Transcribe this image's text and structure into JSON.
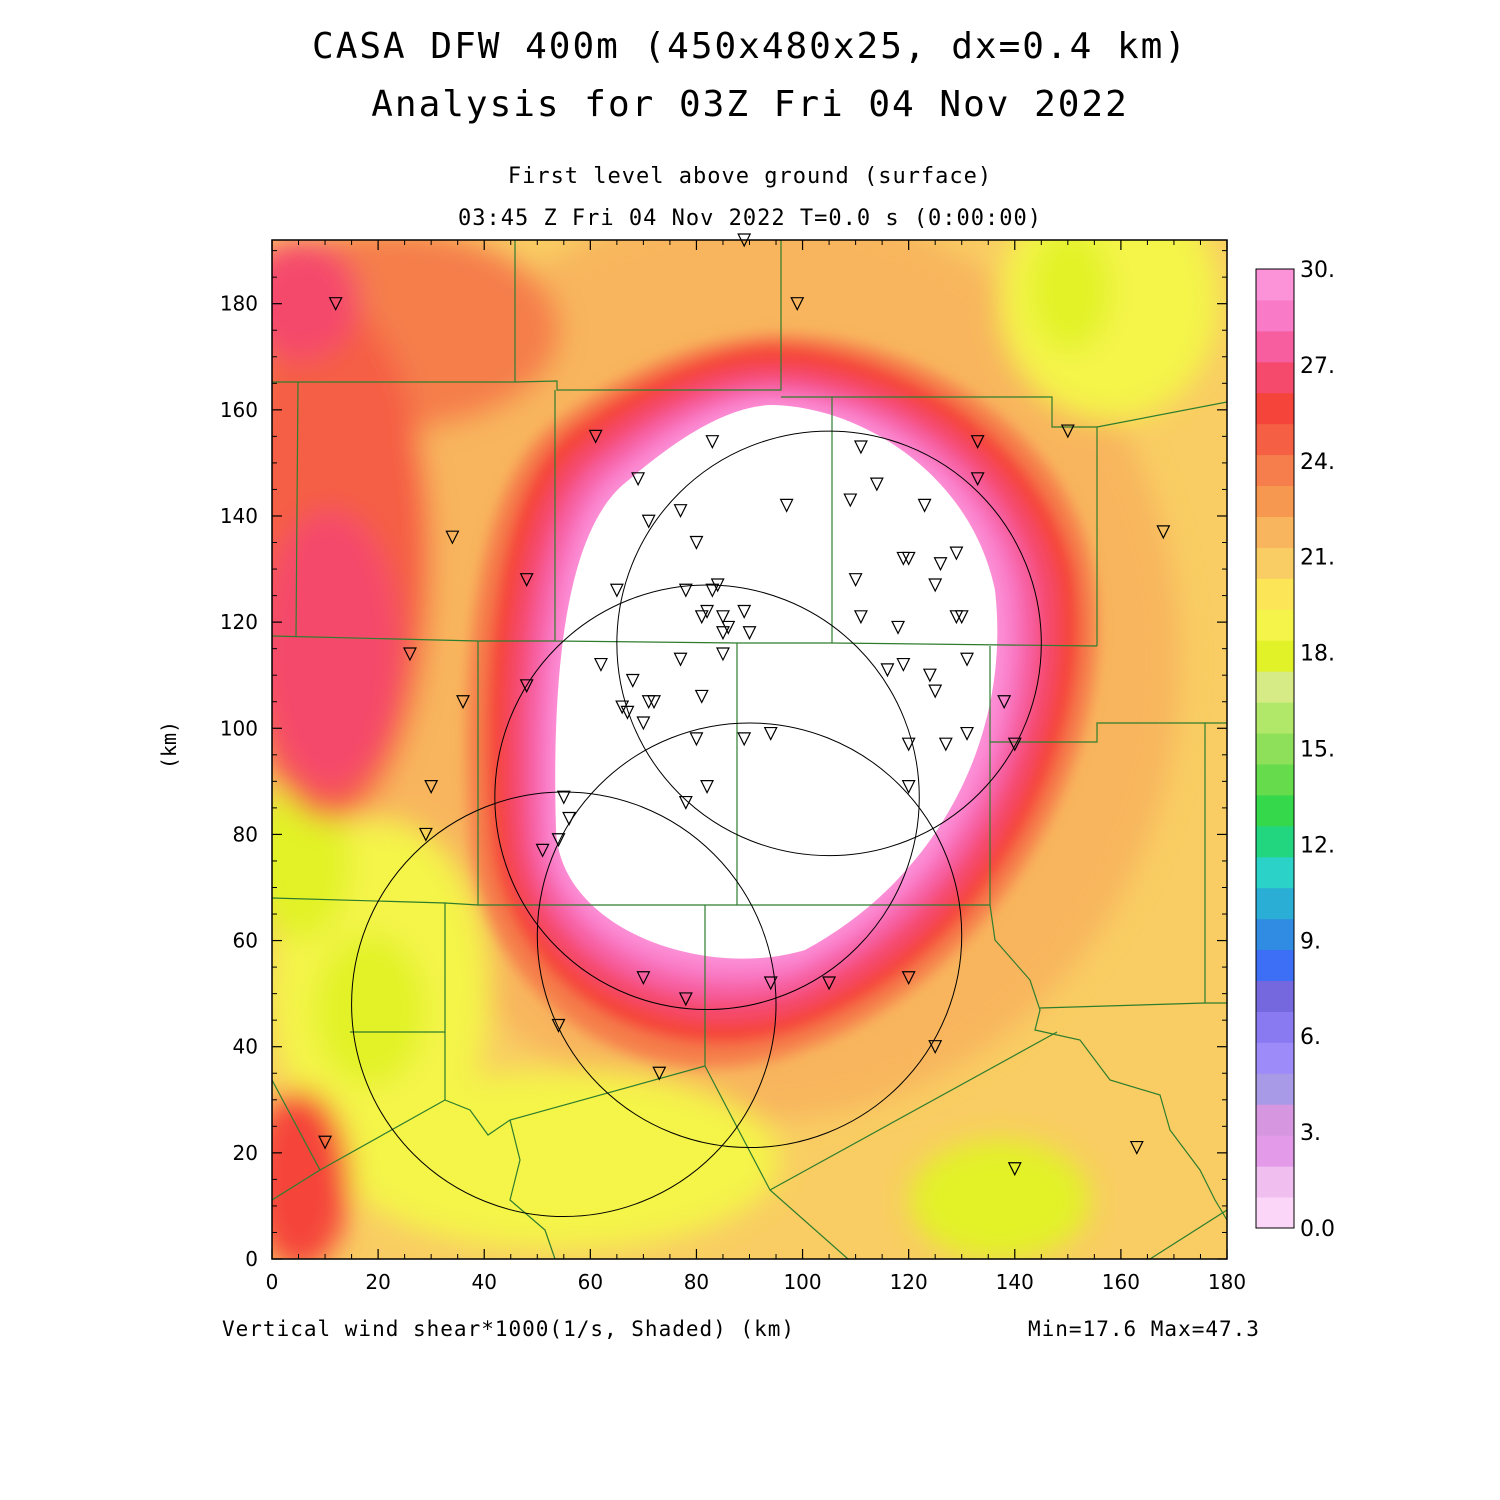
{
  "header": {
    "title_line1": "CASA DFW 400m (450x480x25, dx=0.4 km)",
    "title_line2": "Analysis for 03Z Fri 04 Nov 2022",
    "level_line": "First level above ground (surface)",
    "time_line": "03:45 Z Fri 04 Nov 2022    T=0.0 s (0:00:00)"
  },
  "footer": {
    "field_label": "Vertical wind shear*1000(1/s, Shaded)  (km)",
    "minmax": "Min=17.6 Max=47.3"
  },
  "chart_data": {
    "type": "heatmap",
    "variable": "Vertical wind shear*1000 (1/s)",
    "xlabel": "(km)",
    "ylabel": "(km)",
    "xlim": [
      0,
      180
    ],
    "ylim": [
      0,
      192
    ],
    "x_ticks": [
      0,
      20,
      40,
      60,
      80,
      100,
      120,
      140,
      160,
      180
    ],
    "y_ticks": [
      0,
      20,
      40,
      60,
      80,
      100,
      120,
      140,
      160,
      180
    ],
    "field_min": 17.6,
    "field_max": 47.3,
    "colorbar": {
      "labels": [
        "0.0",
        "3.",
        "6.",
        "9.",
        "12.",
        "15.",
        "18.",
        "21.",
        "24.",
        "27.",
        "30."
      ],
      "label_values": [
        0,
        3,
        6,
        9,
        12,
        15,
        18,
        21,
        24,
        27,
        30
      ],
      "colors": [
        "#fcd6f8",
        "#f0bff0",
        "#e39ae8",
        "#d797e0",
        "#a99ae8",
        "#9c8bf8",
        "#8a7af2",
        "#7567de",
        "#3d6ef6",
        "#2f8ce2",
        "#2aaed6",
        "#2ad2c8",
        "#22d67f",
        "#35d84a",
        "#66dc4c",
        "#8ee05a",
        "#b2e86a",
        "#d6eb86",
        "#e2f228",
        "#f4f44a",
        "#fce658",
        "#f9cd63",
        "#f8b55d",
        "#f79850",
        "#f57e4c",
        "#f55f44",
        "#f5443a",
        "#f54a6c",
        "#f75ea0",
        "#f97ac6",
        "#fc92d8"
      ],
      "overflow_color": "#ffffff"
    },
    "grid": false,
    "radar_range_rings_km": [
      {
        "center": [
          105,
          116
        ],
        "radius": 40
      },
      {
        "center": [
          82,
          87
        ],
        "radius": 40
      },
      {
        "center": [
          90,
          61
        ],
        "radius": 40
      },
      {
        "center": [
          55,
          48
        ],
        "radius": 40
      }
    ],
    "station_markers_km": [
      [
        12,
        180
      ],
      [
        89,
        192
      ],
      [
        99,
        180
      ],
      [
        61,
        155
      ],
      [
        83,
        154
      ],
      [
        111,
        153
      ],
      [
        133,
        154
      ],
      [
        150,
        156
      ],
      [
        69,
        147
      ],
      [
        71,
        139
      ],
      [
        77,
        141
      ],
      [
        97,
        142
      ],
      [
        109,
        143
      ],
      [
        114,
        146
      ],
      [
        123,
        142
      ],
      [
        133,
        147
      ],
      [
        168,
        137
      ],
      [
        34,
        136
      ],
      [
        48,
        128
      ],
      [
        65,
        126
      ],
      [
        80,
        135
      ],
      [
        78,
        126
      ],
      [
        83,
        126
      ],
      [
        84,
        127
      ],
      [
        110,
        128
      ],
      [
        119,
        132
      ],
      [
        120,
        132
      ],
      [
        126,
        131
      ],
      [
        129,
        133
      ],
      [
        125,
        127
      ],
      [
        82,
        122
      ],
      [
        81,
        121
      ],
      [
        85,
        121
      ],
      [
        89,
        122
      ],
      [
        85,
        118
      ],
      [
        86,
        119
      ],
      [
        90,
        118
      ],
      [
        111,
        121
      ],
      [
        118,
        119
      ],
      [
        129,
        121
      ],
      [
        130,
        121
      ],
      [
        26,
        114
      ],
      [
        62,
        112
      ],
      [
        68,
        109
      ],
      [
        77,
        113
      ],
      [
        85,
        114
      ],
      [
        116,
        111
      ],
      [
        119,
        112
      ],
      [
        124,
        110
      ],
      [
        131,
        113
      ],
      [
        36,
        105
      ],
      [
        48,
        108
      ],
      [
        66,
        104
      ],
      [
        67,
        103
      ],
      [
        70,
        101
      ],
      [
        71,
        105
      ],
      [
        72,
        105
      ],
      [
        81,
        106
      ],
      [
        125,
        107
      ],
      [
        138,
        105
      ],
      [
        80,
        98
      ],
      [
        89,
        98
      ],
      [
        94,
        99
      ],
      [
        120,
        97
      ],
      [
        127,
        97
      ],
      [
        131,
        99
      ],
      [
        140,
        97
      ],
      [
        30,
        89
      ],
      [
        82,
        89
      ],
      [
        78,
        86
      ],
      [
        120,
        89
      ],
      [
        55,
        87
      ],
      [
        56,
        83
      ],
      [
        29,
        80
      ],
      [
        51,
        77
      ],
      [
        54,
        79
      ],
      [
        70,
        53
      ],
      [
        78,
        49
      ],
      [
        94,
        52
      ],
      [
        105,
        52
      ],
      [
        120,
        53
      ],
      [
        54,
        44
      ],
      [
        125,
        40
      ],
      [
        73,
        35
      ],
      [
        10,
        22
      ],
      [
        163,
        21
      ],
      [
        140,
        17
      ]
    ]
  }
}
